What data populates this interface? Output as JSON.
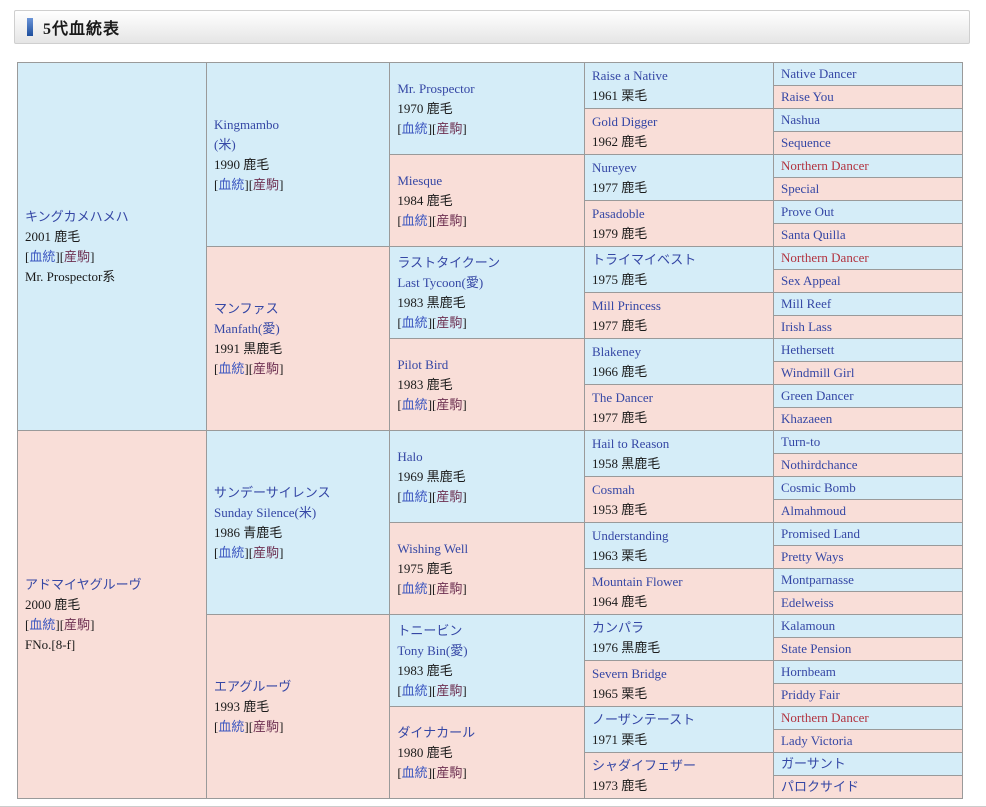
{
  "page": {
    "title": "5代血統表"
  },
  "labels": {
    "bracket_open": "[",
    "bracket_close": "]",
    "blood": "血統",
    "offspring": "産駒"
  },
  "colors": {
    "male_bg": "#d5edf8",
    "female_bg": "#f9ded8",
    "name_link": "#3547a5",
    "red_highlight": "#b2333f",
    "blood_link": "#3b56c0",
    "offspring_link": "#6e3152",
    "border": "#9a9a9a",
    "accent_bar": "#1e4e9d"
  },
  "pedigree": {
    "gen1": [
      {
        "name": "キングカメハメハ",
        "year": "2001 鹿毛",
        "links": true,
        "extra": "Mr. Prospector系",
        "sex": "m"
      },
      {
        "name": "アドマイヤグルーヴ",
        "year": "2000 鹿毛",
        "links": true,
        "extra": "FNo.[8-f]",
        "sex": "f"
      }
    ],
    "gen2": [
      {
        "name": "Kingmambo",
        "name2": "(米)",
        "year": "1990 鹿毛",
        "links": true,
        "sex": "m"
      },
      {
        "name": "マンファス",
        "name2": "Manfath(愛)",
        "year": "1991 黒鹿毛",
        "links": true,
        "sex": "f"
      },
      {
        "name": "サンデーサイレンス",
        "name2": "Sunday Silence(米)",
        "year": "1986 青鹿毛",
        "links": true,
        "sex": "m"
      },
      {
        "name": "エアグルーヴ",
        "year": "1993 鹿毛",
        "links": true,
        "sex": "f"
      }
    ],
    "gen3": [
      {
        "name": "Mr. Prospector",
        "year": "1970 鹿毛",
        "links": true,
        "sex": "m"
      },
      {
        "name": "Miesque",
        "year": "1984 鹿毛",
        "links": true,
        "sex": "f"
      },
      {
        "name": "ラストタイクーン",
        "name2": "Last Tycoon(愛)",
        "year": "1983 黒鹿毛",
        "links": true,
        "sex": "m"
      },
      {
        "name": "Pilot Bird",
        "year": "1983 鹿毛",
        "links": true,
        "sex": "f"
      },
      {
        "name": "Halo",
        "year": "1969 黒鹿毛",
        "links": true,
        "sex": "m"
      },
      {
        "name": "Wishing Well",
        "year": "1975 鹿毛",
        "links": true,
        "sex": "f"
      },
      {
        "name": "トニービン",
        "name2": "Tony Bin(愛)",
        "year": "1983 鹿毛",
        "links": true,
        "sex": "m"
      },
      {
        "name": "ダイナカール",
        "year": "1980 鹿毛",
        "links": true,
        "sex": "f"
      }
    ],
    "gen4": [
      {
        "name": "Raise a Native",
        "year": "1961 栗毛",
        "sex": "m"
      },
      {
        "name": "Gold Digger",
        "year": "1962 鹿毛",
        "sex": "f"
      },
      {
        "name": "Nureyev",
        "year": "1977 鹿毛",
        "sex": "m"
      },
      {
        "name": "Pasadoble",
        "year": "1979 鹿毛",
        "sex": "f"
      },
      {
        "name": "トライマイベスト",
        "year": "1975 鹿毛",
        "sex": "m"
      },
      {
        "name": "Mill Princess",
        "year": "1977 鹿毛",
        "sex": "f"
      },
      {
        "name": "Blakeney",
        "year": "1966 鹿毛",
        "sex": "m"
      },
      {
        "name": "The Dancer",
        "year": "1977 鹿毛",
        "sex": "f"
      },
      {
        "name": "Hail to Reason",
        "year": "1958 黒鹿毛",
        "sex": "m"
      },
      {
        "name": "Cosmah",
        "year": "1953 鹿毛",
        "sex": "f"
      },
      {
        "name": "Understanding",
        "year": "1963 栗毛",
        "sex": "m"
      },
      {
        "name": "Mountain Flower",
        "year": "1964 鹿毛",
        "sex": "f"
      },
      {
        "name": "カンパラ",
        "year": "1976 黒鹿毛",
        "sex": "m"
      },
      {
        "name": "Severn Bridge",
        "year": "1965 栗毛",
        "sex": "f"
      },
      {
        "name": "ノーザンテースト",
        "year": "1971 栗毛",
        "sex": "m"
      },
      {
        "name": "シャダイフェザー",
        "year": "1973 鹿毛",
        "sex": "f"
      }
    ],
    "gen5": [
      {
        "name": "Native Dancer",
        "sex": "m"
      },
      {
        "name": "Raise You",
        "sex": "f"
      },
      {
        "name": "Nashua",
        "sex": "m"
      },
      {
        "name": "Sequence",
        "sex": "f"
      },
      {
        "name": "Northern Dancer",
        "sex": "m",
        "red": true
      },
      {
        "name": "Special",
        "sex": "f"
      },
      {
        "name": "Prove Out",
        "sex": "m"
      },
      {
        "name": "Santa Quilla",
        "sex": "f"
      },
      {
        "name": "Northern Dancer",
        "sex": "m",
        "red": true
      },
      {
        "name": "Sex Appeal",
        "sex": "f"
      },
      {
        "name": "Mill Reef",
        "sex": "m"
      },
      {
        "name": "Irish Lass",
        "sex": "f"
      },
      {
        "name": "Hethersett",
        "sex": "m"
      },
      {
        "name": "Windmill Girl",
        "sex": "f"
      },
      {
        "name": "Green Dancer",
        "sex": "m"
      },
      {
        "name": "Khazaeen",
        "sex": "f"
      },
      {
        "name": "Turn-to",
        "sex": "m"
      },
      {
        "name": "Nothirdchance",
        "sex": "f"
      },
      {
        "name": "Cosmic Bomb",
        "sex": "m"
      },
      {
        "name": "Almahmoud",
        "sex": "f"
      },
      {
        "name": "Promised Land",
        "sex": "m"
      },
      {
        "name": "Pretty Ways",
        "sex": "f"
      },
      {
        "name": "Montparnasse",
        "sex": "m"
      },
      {
        "name": "Edelweiss",
        "sex": "f"
      },
      {
        "name": "Kalamoun",
        "sex": "m"
      },
      {
        "name": "State Pension",
        "sex": "f"
      },
      {
        "name": "Hornbeam",
        "sex": "m"
      },
      {
        "name": "Priddy Fair",
        "sex": "f"
      },
      {
        "name": "Northern Dancer",
        "sex": "m",
        "red": true
      },
      {
        "name": "Lady Victoria",
        "sex": "f"
      },
      {
        "name": "ガーサント",
        "sex": "m"
      },
      {
        "name": "パロクサイド",
        "sex": "f"
      }
    ]
  }
}
